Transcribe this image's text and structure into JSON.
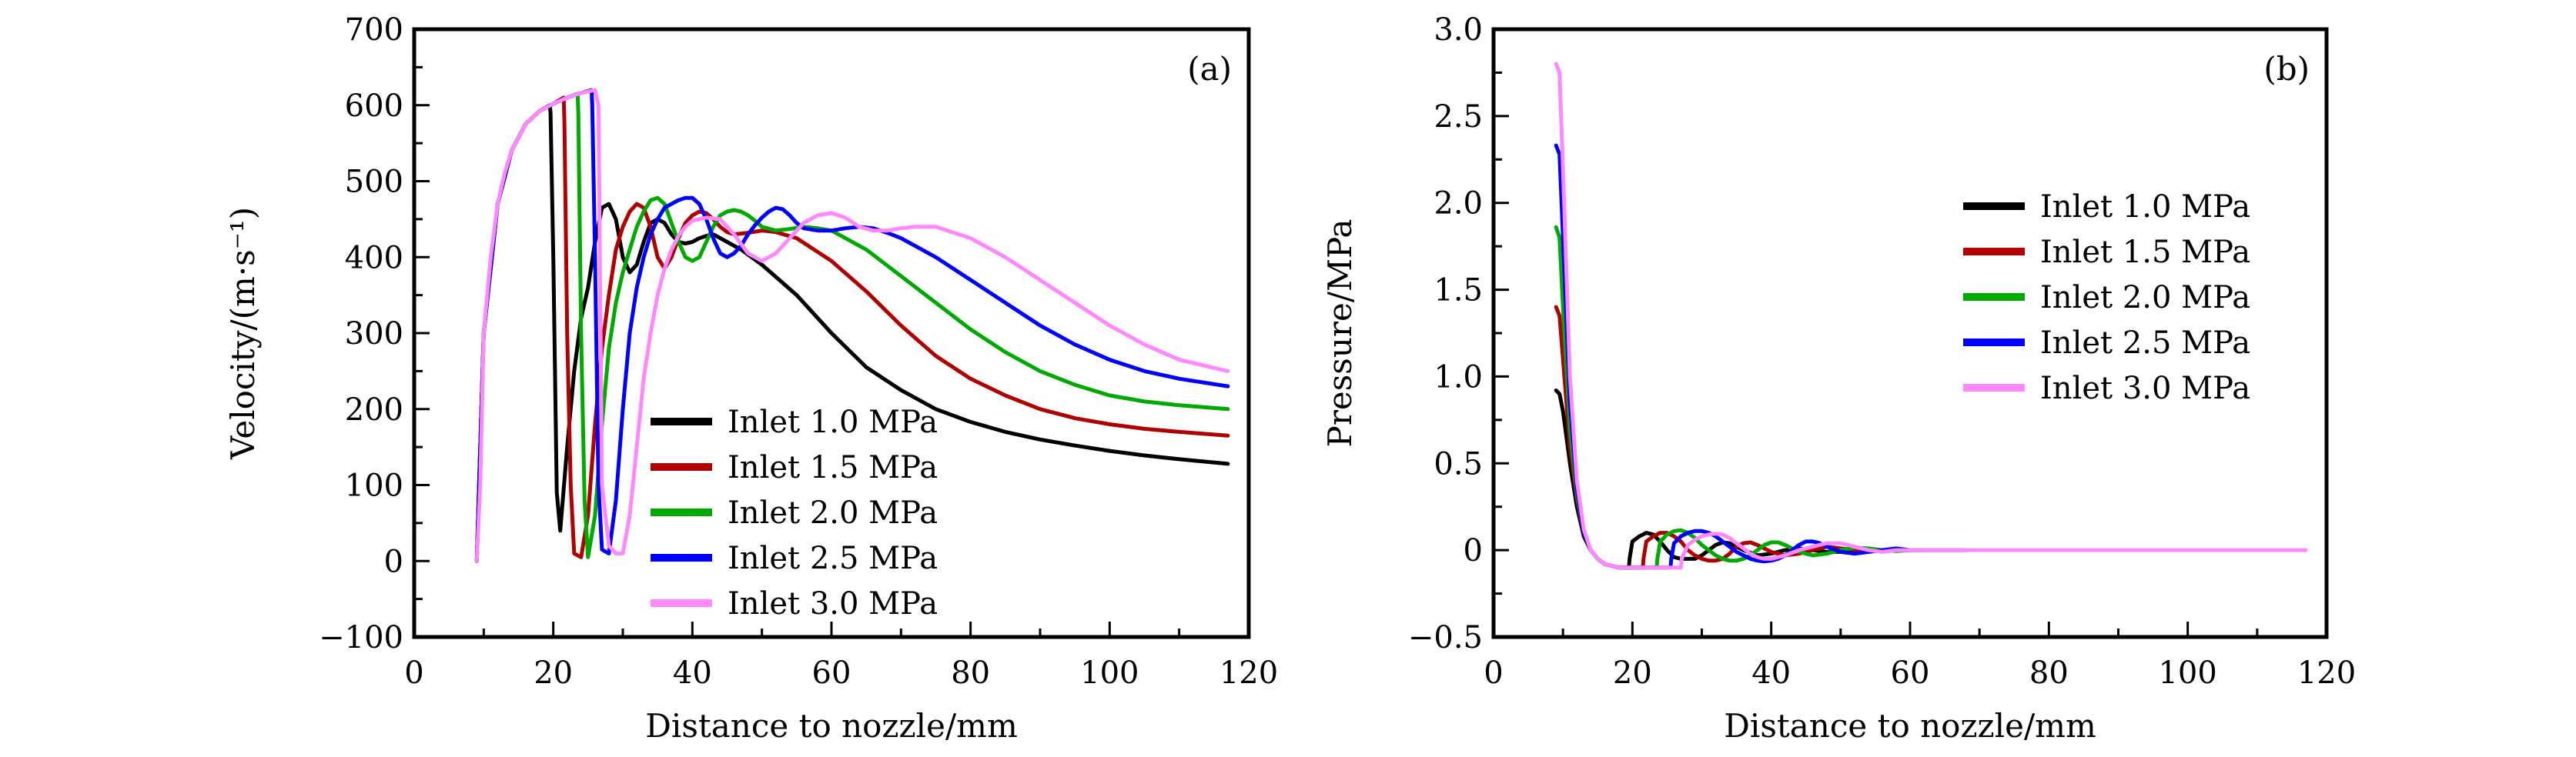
{
  "chart_data": [
    {
      "id": "a",
      "type": "line",
      "panel_label": "(a)",
      "title": "",
      "xlabel": "Distance to nozzle/mm",
      "ylabel": "Velocity/(m·s⁻¹)",
      "xlim": [
        0,
        120
      ],
      "ylim": [
        -100,
        700
      ],
      "xticks": [
        0,
        20,
        40,
        60,
        80,
        100,
        120
      ],
      "yticks": [
        -100,
        0,
        100,
        200,
        300,
        400,
        500,
        600,
        700
      ],
      "xtick_labels": [
        "0",
        "20",
        "40",
        "60",
        "80",
        "100",
        "120"
      ],
      "ytick_labels": [
        "−100",
        "0",
        "100",
        "200",
        "300",
        "400",
        "500",
        "600",
        "700"
      ],
      "grid": false,
      "legend_position": "bottom-center",
      "series": [
        {
          "name": "Inlet 1.0 MPa",
          "color": "#000000",
          "x": [
            9,
            10,
            12,
            14,
            16,
            18,
            19.5,
            19.6,
            20,
            20.5,
            21,
            22,
            23,
            24,
            25,
            26,
            27,
            28,
            29,
            30,
            31,
            32,
            33,
            34,
            35,
            36,
            37,
            38,
            39,
            40,
            41,
            42,
            43,
            44,
            45,
            47,
            50,
            55,
            60,
            65,
            70,
            75,
            80,
            85,
            90,
            95,
            100,
            105,
            110,
            117
          ],
          "y": [
            0,
            300,
            470,
            540,
            575,
            592,
            600,
            590,
            400,
            90,
            40,
            150,
            250,
            320,
            360,
            420,
            465,
            470,
            450,
            400,
            380,
            390,
            420,
            445,
            450,
            445,
            430,
            420,
            418,
            420,
            425,
            428,
            430,
            425,
            420,
            410,
            390,
            350,
            300,
            255,
            225,
            200,
            183,
            170,
            160,
            152,
            145,
            139,
            134,
            128
          ]
        },
        {
          "name": "Inlet 1.5 MPa",
          "color": "#B00000",
          "x": [
            9,
            10,
            12,
            14,
            16,
            18,
            20,
            21.5,
            21.6,
            22,
            22.5,
            23,
            24,
            25,
            26,
            27,
            28,
            29,
            30,
            31,
            32,
            33,
            34,
            35,
            36,
            37,
            38,
            39,
            40,
            41,
            42,
            43,
            44,
            45,
            46,
            48,
            50,
            52,
            55,
            60,
            65,
            70,
            75,
            80,
            85,
            90,
            95,
            100,
            105,
            110,
            117
          ],
          "y": [
            0,
            300,
            470,
            540,
            575,
            592,
            602,
            610,
            580,
            300,
            100,
            10,
            5,
            60,
            180,
            280,
            350,
            410,
            440,
            460,
            470,
            465,
            440,
            400,
            385,
            400,
            425,
            445,
            455,
            460,
            458,
            450,
            440,
            433,
            430,
            432,
            435,
            433,
            425,
            395,
            355,
            310,
            270,
            240,
            218,
            200,
            188,
            180,
            174,
            170,
            165
          ]
        },
        {
          "name": "Inlet 2.0 MPa",
          "color": "#00AA00",
          "x": [
            9,
            10,
            12,
            14,
            16,
            18,
            20,
            22,
            23.5,
            23.6,
            24,
            24.5,
            25,
            26,
            27,
            28,
            29,
            30,
            31,
            32,
            33,
            34,
            35,
            36,
            37,
            38,
            39,
            40,
            41,
            42,
            43,
            44,
            45,
            46,
            47,
            48,
            49,
            50,
            52,
            54,
            56,
            58,
            60,
            65,
            70,
            75,
            80,
            85,
            90,
            95,
            100,
            105,
            110,
            117
          ],
          "y": [
            0,
            300,
            470,
            540,
            575,
            592,
            602,
            610,
            615,
            590,
            300,
            80,
            5,
            60,
            180,
            280,
            340,
            380,
            410,
            440,
            460,
            475,
            478,
            470,
            445,
            420,
            400,
            395,
            400,
            420,
            440,
            455,
            460,
            462,
            460,
            455,
            448,
            440,
            435,
            437,
            440,
            438,
            435,
            410,
            375,
            340,
            305,
            275,
            250,
            232,
            218,
            210,
            205,
            200
          ]
        },
        {
          "name": "Inlet 2.5 MPa",
          "color": "#0000FF",
          "x": [
            9,
            10,
            12,
            14,
            16,
            18,
            20,
            22,
            24,
            25.5,
            25.6,
            26,
            26.5,
            27,
            28,
            29,
            30,
            31,
            32,
            33,
            34,
            35,
            36,
            37,
            38,
            39,
            40,
            41,
            42,
            43,
            44,
            45,
            46,
            47,
            48,
            49,
            50,
            51,
            52,
            53,
            54,
            55,
            56,
            58,
            60,
            62,
            64,
            66,
            68,
            70,
            75,
            80,
            85,
            90,
            95,
            100,
            105,
            110,
            117
          ],
          "y": [
            0,
            300,
            470,
            540,
            575,
            592,
            602,
            610,
            616,
            620,
            600,
            400,
            100,
            15,
            10,
            80,
            200,
            300,
            360,
            400,
            430,
            450,
            465,
            470,
            475,
            478,
            478,
            470,
            450,
            425,
            405,
            400,
            405,
            415,
            430,
            442,
            452,
            460,
            465,
            463,
            455,
            445,
            438,
            435,
            435,
            438,
            440,
            438,
            432,
            425,
            400,
            370,
            340,
            310,
            285,
            265,
            250,
            240,
            230
          ]
        },
        {
          "name": "Inlet 3.0 MPa",
          "color": "#FF88FF",
          "x": [
            9,
            9.5,
            10,
            11,
            12,
            13,
            14,
            16,
            18,
            20,
            22,
            24,
            26,
            26.5,
            27,
            28,
            29,
            30,
            31,
            32,
            33,
            34,
            35,
            36,
            37,
            38,
            39,
            40,
            42,
            44,
            46,
            48,
            50,
            52,
            54,
            56,
            58,
            60,
            62,
            64,
            66,
            68,
            70,
            72,
            75,
            80,
            85,
            90,
            95,
            100,
            105,
            110,
            117
          ],
          "y": [
            0,
            100,
            300,
            400,
            470,
            510,
            540,
            575,
            592,
            602,
            610,
            616,
            620,
            600,
            100,
            20,
            10,
            10,
            60,
            150,
            240,
            300,
            350,
            385,
            410,
            428,
            440,
            448,
            452,
            450,
            430,
            405,
            395,
            405,
            425,
            445,
            455,
            458,
            452,
            440,
            435,
            435,
            438,
            440,
            440,
            425,
            400,
            370,
            340,
            310,
            285,
            265,
            250
          ]
        }
      ]
    },
    {
      "id": "b",
      "type": "line",
      "panel_label": "(b)",
      "title": "",
      "xlabel": "Distance to nozzle/mm",
      "ylabel": "Pressure/MPa",
      "xlim": [
        0,
        120
      ],
      "ylim": [
        -0.5,
        3.0
      ],
      "xticks": [
        0,
        20,
        40,
        60,
        80,
        100,
        120
      ],
      "yticks": [
        -0.5,
        0,
        0.5,
        1.0,
        1.5,
        2.0,
        2.5,
        3.0
      ],
      "xtick_labels": [
        "0",
        "20",
        "40",
        "60",
        "80",
        "100",
        "120"
      ],
      "ytick_labels": [
        "−0.5",
        "0",
        "0.5",
        "1.0",
        "1.5",
        "2.0",
        "2.5",
        "3.0"
      ],
      "grid": false,
      "legend_position": "center-right",
      "series": [
        {
          "name": "Inlet 1.0 MPa",
          "color": "#000000",
          "x": [
            9,
            9.5,
            10,
            11,
            12,
            13,
            14,
            15,
            16,
            17,
            18,
            19.5,
            19.6,
            20,
            21,
            22,
            23,
            24,
            25,
            26,
            27,
            28,
            29,
            30,
            31,
            32,
            33,
            34,
            35,
            36,
            38,
            40,
            42,
            44,
            46,
            48,
            50,
            52,
            54,
            56,
            58,
            60
          ],
          "y": [
            0.92,
            0.9,
            0.8,
            0.5,
            0.25,
            0.08,
            0.0,
            -0.05,
            -0.08,
            -0.09,
            -0.1,
            -0.1,
            -0.05,
            0.05,
            0.08,
            0.1,
            0.09,
            0.05,
            0.0,
            -0.04,
            -0.05,
            -0.05,
            -0.05,
            -0.03,
            0.0,
            0.03,
            0.045,
            0.04,
            0.02,
            0.0,
            -0.03,
            -0.02,
            0.0,
            0.01,
            0.0,
            -0.01,
            -0.01,
            0.0,
            0.0,
            0.0,
            0.0,
            0.0
          ]
        },
        {
          "name": "Inlet 1.5 MPa",
          "color": "#B00000",
          "x": [
            9,
            9.5,
            10,
            11,
            12,
            13,
            14,
            15,
            16,
            17,
            18,
            20,
            21.5,
            21.6,
            22,
            23,
            24,
            25,
            26,
            27,
            28,
            29,
            30,
            31,
            32,
            33,
            34,
            35,
            36,
            37,
            38,
            39,
            40,
            42,
            44,
            46,
            48,
            50,
            52,
            54,
            56,
            58,
            60
          ],
          "y": [
            1.4,
            1.35,
            1.1,
            0.6,
            0.3,
            0.1,
            0.0,
            -0.05,
            -0.08,
            -0.09,
            -0.1,
            -0.1,
            -0.1,
            -0.05,
            0.05,
            0.08,
            0.1,
            0.1,
            0.08,
            0.05,
            0.0,
            -0.03,
            -0.05,
            -0.06,
            -0.06,
            -0.05,
            -0.02,
            0.02,
            0.04,
            0.045,
            0.03,
            0.01,
            -0.01,
            -0.03,
            -0.02,
            0.0,
            0.02,
            0.01,
            0.0,
            -0.01,
            0.0,
            0.0,
            0.0
          ]
        },
        {
          "name": "Inlet 2.0 MPa",
          "color": "#00AA00",
          "x": [
            9,
            9.5,
            10,
            11,
            12,
            13,
            14,
            15,
            16,
            17,
            18,
            20,
            22,
            23.5,
            23.6,
            24,
            25,
            26,
            27,
            28,
            29,
            30,
            31,
            32,
            33,
            34,
            35,
            36,
            37,
            38,
            39,
            40,
            41,
            42,
            43,
            44,
            46,
            48,
            50,
            52,
            54,
            56,
            58,
            60,
            62
          ],
          "y": [
            1.86,
            1.8,
            1.4,
            0.7,
            0.32,
            0.1,
            0.0,
            -0.05,
            -0.08,
            -0.09,
            -0.1,
            -0.1,
            -0.1,
            -0.1,
            -0.05,
            0.05,
            0.09,
            0.11,
            0.115,
            0.1,
            0.07,
            0.03,
            0.0,
            -0.03,
            -0.05,
            -0.06,
            -0.06,
            -0.05,
            -0.03,
            0.0,
            0.03,
            0.045,
            0.045,
            0.03,
            0.01,
            -0.01,
            -0.03,
            -0.02,
            0.0,
            0.015,
            0.01,
            0.0,
            -0.005,
            0.0,
            0.0
          ]
        },
        {
          "name": "Inlet 2.5 MPa",
          "color": "#0000FF",
          "x": [
            9,
            9.5,
            10,
            11,
            12,
            13,
            14,
            15,
            16,
            17,
            18,
            20,
            22,
            24,
            25.5,
            25.6,
            26,
            27,
            28,
            29,
            30,
            31,
            32,
            33,
            34,
            35,
            36,
            37,
            38,
            39,
            40,
            41,
            42,
            43,
            44,
            45,
            46,
            47,
            48,
            50,
            52,
            54,
            56,
            58,
            60,
            62,
            64,
            66,
            68
          ],
          "y": [
            2.33,
            2.28,
            1.8,
            0.85,
            0.35,
            0.1,
            0.0,
            -0.05,
            -0.08,
            -0.09,
            -0.1,
            -0.1,
            -0.1,
            -0.1,
            -0.1,
            -0.05,
            0.04,
            0.08,
            0.1,
            0.11,
            0.11,
            0.1,
            0.08,
            0.05,
            0.02,
            -0.01,
            -0.03,
            -0.05,
            -0.06,
            -0.065,
            -0.06,
            -0.05,
            -0.03,
            0.0,
            0.03,
            0.05,
            0.05,
            0.04,
            0.02,
            -0.01,
            -0.02,
            -0.01,
            0.0,
            0.01,
            0.0,
            0.0,
            0.0,
            0.0,
            0.0
          ]
        },
        {
          "name": "Inlet 3.0 MPa",
          "color": "#FF88FF",
          "x": [
            9,
            9.5,
            10,
            11,
            12,
            13,
            14,
            15,
            16,
            17,
            18,
            20,
            22,
            24,
            26,
            27,
            27.1,
            28,
            29,
            30,
            31,
            32,
            33,
            34,
            35,
            36,
            37,
            38,
            39,
            40,
            42,
            44,
            46,
            48,
            50,
            52,
            54,
            56,
            58,
            60,
            65,
            70,
            80,
            90,
            100,
            110,
            117
          ],
          "y": [
            2.8,
            2.75,
            2.2,
            1.0,
            0.4,
            0.12,
            0.0,
            -0.05,
            -0.08,
            -0.09,
            -0.1,
            -0.1,
            -0.1,
            -0.1,
            -0.1,
            -0.1,
            -0.05,
            0.03,
            0.06,
            0.08,
            0.09,
            0.095,
            0.09,
            0.07,
            0.04,
            0.01,
            -0.02,
            -0.04,
            -0.05,
            -0.05,
            -0.03,
            0.0,
            0.02,
            0.04,
            0.04,
            0.02,
            0.0,
            -0.01,
            0.0,
            0.0,
            0.0,
            0.0,
            0.0,
            0.0,
            0.0,
            0.0,
            0.0
          ]
        }
      ]
    }
  ]
}
